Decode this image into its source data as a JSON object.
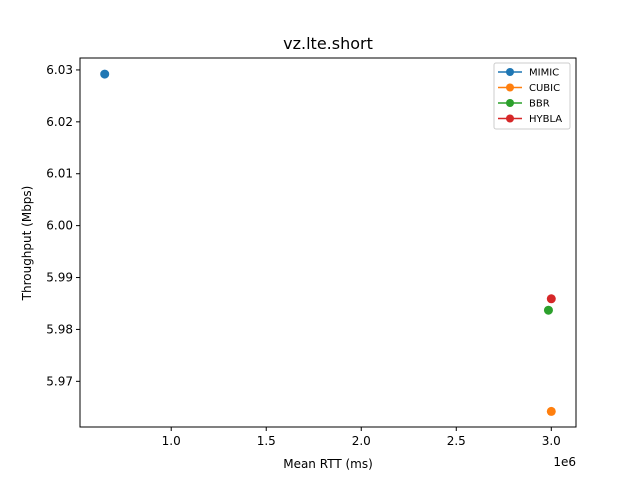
{
  "chart_data": {
    "type": "scatter",
    "title": "vz.lte.short",
    "xlabel": "Mean RTT (ms)",
    "ylabel": "Throughput (Mbps)",
    "x_offset_label": "1e6",
    "xlim": [
      520000,
      3130000
    ],
    "ylim": [
      5.9612,
      6.0323
    ],
    "x_ticks": [
      1000000,
      1500000,
      2000000,
      2500000,
      3000000
    ],
    "x_tick_labels": [
      "1.0",
      "1.5",
      "2.0",
      "2.5",
      "3.0"
    ],
    "y_ticks": [
      5.97,
      5.98,
      5.99,
      6.0,
      6.01,
      6.02,
      6.03
    ],
    "y_tick_labels": [
      "5.97",
      "5.98",
      "5.99",
      "6.00",
      "6.01",
      "6.02",
      "6.03"
    ],
    "grid": false,
    "legend_position": "top-right",
    "series": [
      {
        "name": "MIMIC",
        "color": "#1f77b4",
        "points": [
          {
            "x": 650000,
            "y": 6.0292
          }
        ]
      },
      {
        "name": "CUBIC",
        "color": "#ff7f0e",
        "points": [
          {
            "x": 3000000,
            "y": 5.9642
          }
        ]
      },
      {
        "name": "BBR",
        "color": "#2ca02c",
        "points": [
          {
            "x": 2985000,
            "y": 5.9837
          }
        ]
      },
      {
        "name": "HYBLA",
        "color": "#d62728",
        "points": [
          {
            "x": 3000000,
            "y": 5.9859
          }
        ]
      }
    ]
  }
}
